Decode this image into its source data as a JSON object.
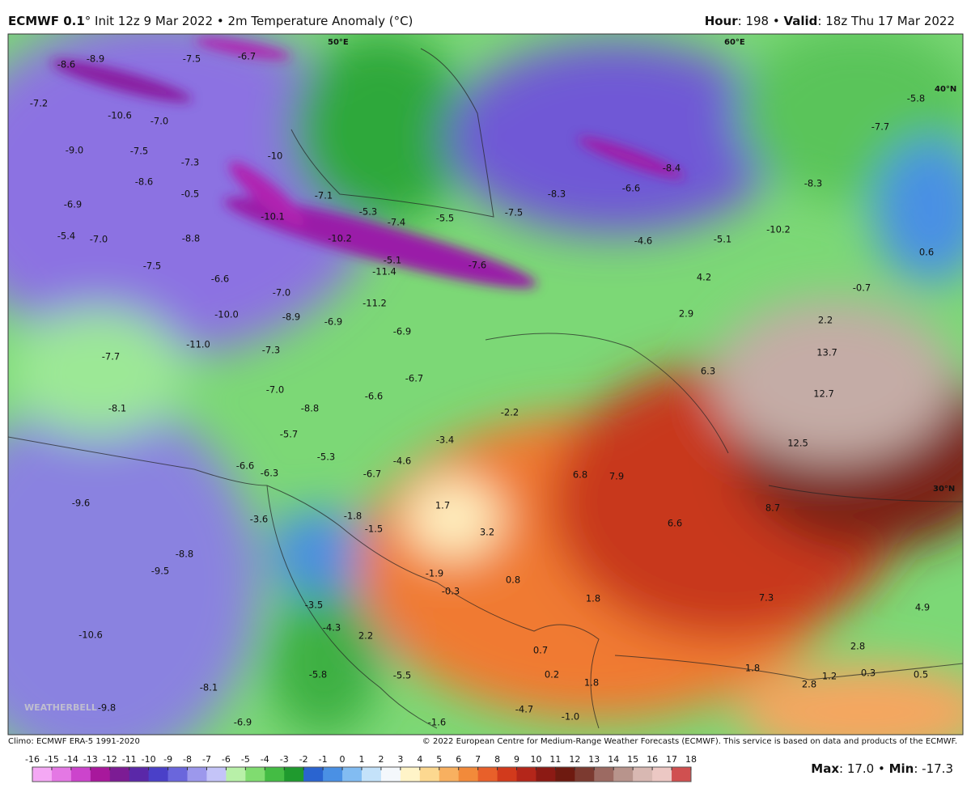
{
  "header": {
    "left": [
      {
        "text": "ECMWF 0.1",
        "bold": true
      },
      {
        "text": "° Init 12z 9 Mar 2022 • 2m Temperature Anomaly (°C)",
        "bold": false
      }
    ],
    "right": [
      {
        "text": "Hour",
        "bold": true
      },
      {
        "text": ": 198 • ",
        "bold": false
      },
      {
        "text": "Valid",
        "bold": true
      },
      {
        "text": ": 18z Thu 17 Mar 2022",
        "bold": false
      }
    ]
  },
  "map": {
    "graticule": [
      "50°E",
      "60°E",
      "40°N",
      "30°N"
    ],
    "labels": [
      "-8.6",
      "-8.9",
      "-7.5",
      "-6.7",
      "-7.2",
      "-10.6",
      "-7.0",
      "-9.0",
      "-7.5",
      "-7.3",
      "-10",
      "-8.6",
      "-0.5",
      "-6.9",
      "-7.1",
      "-10.1",
      "-5.3",
      "-7.4",
      "-5.5",
      "-7.5",
      "-8.3",
      "-6.6",
      "-8.4",
      "-8.3",
      "-7.7",
      "-5.8",
      "-5.4",
      "-7.0",
      "-8.8",
      "-10.2",
      "-5.1",
      "-11.4",
      "-7.6",
      "-4.6",
      "-5.1",
      "-10.2",
      "0.6",
      "-0.7",
      "4.2",
      "-7.5",
      "-6.6",
      "-7.0",
      "-11.2",
      "-10.0",
      "-8.9",
      "-6.9",
      "2.9",
      "2.2",
      "-6.9",
      "-11.0",
      "-7.3",
      "13.7",
      "-7.7",
      "6.3",
      "-6.7",
      "-7.0",
      "12.7",
      "-6.6",
      "-8.8",
      "-8.1",
      "-2.2",
      "-5.7",
      "-3.4",
      "12.5",
      "-5.3",
      "-4.6",
      "-6.6",
      "-6.3",
      "-6.7",
      "6.8",
      "7.9",
      "-9.6",
      "1.7",
      "8.7",
      "-1.8",
      "-1.5",
      "-3.6",
      "6.6",
      "3.2",
      "-8.8",
      "-9.5",
      "-1.9",
      "0.8",
      "-0.3",
      "1.8",
      "7.3",
      "4.9",
      "-3.5",
      "-4.3",
      "-10.6",
      "2.2",
      "2.8",
      "0.7",
      "-5.5",
      "-5.8",
      "1.8",
      "0.2",
      "1.8",
      "2.8",
      "1.2",
      "0.3",
      "0.5",
      "-8.1",
      "-9.8",
      "-1.0",
      "-1.6",
      "-4.7",
      "-6.9"
    ],
    "watermark": "WEATHERBELL"
  },
  "footer": {
    "left": "Climo: ECMWF ERA-5 1991-2020",
    "right": "© 2022 European Centre for Medium-Range Weather Forecasts (ECMWF). This service is based on data and products of the ECMWF."
  },
  "colorbar": {
    "ticks": [
      -16,
      -15,
      -14,
      -13,
      -12,
      -11,
      -10,
      -9,
      -8,
      -7,
      -6,
      -5,
      -4,
      -3,
      -2,
      -1,
      0,
      1,
      2,
      3,
      4,
      5,
      6,
      7,
      8,
      9,
      10,
      11,
      12,
      13,
      14,
      15,
      16,
      17,
      18
    ],
    "colors": [
      "#f4a8f4",
      "#e478e4",
      "#cc44cc",
      "#a8189c",
      "#7c1c94",
      "#5a28a8",
      "#4a40c8",
      "#6a66dc",
      "#9c98ec",
      "#c4c4f8",
      "#b8f0a8",
      "#80dc70",
      "#44bc44",
      "#1f9a2e",
      "#2a64d0",
      "#4a90e4",
      "#82bcf2",
      "#c4e2fa",
      "#f4f8fc",
      "#fff4c8",
      "#fcd890",
      "#f8b060",
      "#f28a3a",
      "#e8602a",
      "#d23a1c",
      "#b4261a",
      "#8c1a14",
      "#6e1a10",
      "#7c3a30",
      "#9c6a62",
      "#b8948c",
      "#d8b8b2",
      "#ecc8c4",
      "#d05050"
    ]
  },
  "stats": [
    {
      "text": "Max",
      "bold": true
    },
    {
      "text": ": 17.0 • ",
      "bold": false
    },
    {
      "text": "Min",
      "bold": true
    },
    {
      "text": ": -17.3",
      "bold": false
    }
  ]
}
